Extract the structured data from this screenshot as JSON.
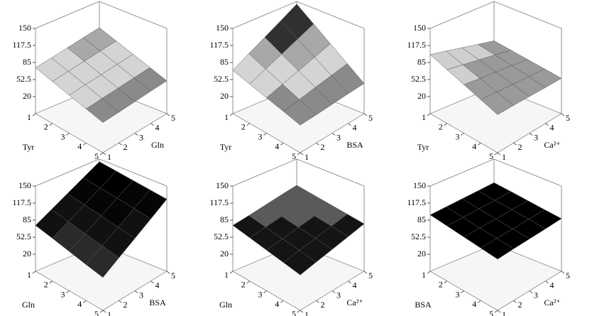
{
  "chart_data": [
    {
      "type": "surface3d",
      "xlabel": "Tyr",
      "ylabel": "Gln",
      "x": [
        1,
        2,
        3,
        4,
        5
      ],
      "y": [
        1,
        2,
        3,
        4,
        5
      ],
      "z": [
        [
          75,
          67.5,
          60,
          52.5,
          45
        ],
        [
          81,
          72.5,
          64,
          55,
          46
        ],
        [
          87.5,
          77.5,
          67.5,
          57.5,
          47.5
        ],
        [
          94,
          82.5,
          71.5,
          60,
          49
        ],
        [
          100,
          87.5,
          75,
          62.5,
          50
        ]
      ],
      "xlim": [
        1,
        5
      ],
      "ylim": [
        1,
        5
      ],
      "zlim": [
        -12.5,
        150
      ],
      "xticks": [
        1,
        2,
        3,
        4,
        5
      ],
      "yticks": [
        1,
        2,
        3,
        4,
        5
      ],
      "zticks": [
        20,
        52.5,
        85,
        117.5,
        150
      ],
      "surface_colors": [
        "#000000",
        "#1a1a1a",
        "#8a8a8a",
        "#d4d4d4",
        "#a8a8a8",
        "#303030",
        "#000000"
      ]
    },
    {
      "type": "surface3d",
      "xlabel": "Tyr",
      "ylabel": "BSA",
      "x": [
        1,
        2,
        3,
        4,
        5
      ],
      "y": [
        1,
        2,
        3,
        4,
        5
      ],
      "z": [
        [
          70,
          62.5,
          55,
          47.5,
          40
        ],
        [
          89,
          77,
          65,
          53,
          41
        ],
        [
          107.5,
          91,
          75,
          59,
          42.5
        ],
        [
          126,
          105.5,
          85,
          64.5,
          44
        ],
        [
          145,
          120,
          95,
          70,
          45
        ]
      ],
      "xlim": [
        1,
        5
      ],
      "ylim": [
        1,
        5
      ],
      "zlim": [
        -12.5,
        150
      ],
      "xticks": [
        1,
        2,
        3,
        4,
        5
      ],
      "yticks": [
        1,
        2,
        3,
        4,
        5
      ],
      "zticks": [
        20,
        52.5,
        85,
        117.5,
        150
      ],
      "surface_colors": [
        "#000000",
        "#1a1a1a",
        "#8a8a8a",
        "#d4d4d4",
        "#a8a8a8",
        "#303030",
        "#000000"
      ]
    },
    {
      "type": "surface3d",
      "xlabel": "Tyr",
      "ylabel": "Ca²⁺",
      "x": [
        1,
        2,
        3,
        4,
        5
      ],
      "y": [
        1,
        2,
        3,
        4,
        5
      ],
      "z": [
        [
          100,
          90,
          80,
          70,
          60
        ],
        [
          94,
          85,
          76,
          67.5,
          59
        ],
        [
          87.5,
          80,
          72.5,
          65,
          57.5
        ],
        [
          81,
          75,
          69,
          62.5,
          56
        ],
        [
          75,
          70,
          65,
          60,
          55
        ]
      ],
      "xlim": [
        1,
        5
      ],
      "ylim": [
        1,
        5
      ],
      "zlim": [
        -12.5,
        150
      ],
      "xticks": [
        1,
        2,
        3,
        4,
        5
      ],
      "yticks": [
        1,
        2,
        3,
        4,
        5
      ],
      "zticks": [
        20,
        52.5,
        85,
        117.5,
        150
      ],
      "surface_colors": [
        "#000000",
        "#1a1a1a",
        "#555555",
        "#9a9a9a",
        "#cfcfcf",
        "#b0b0b0",
        "#707070"
      ]
    },
    {
      "type": "surface3d",
      "xlabel": "Gln",
      "ylabel": "BSA",
      "x": [
        1,
        2,
        3,
        4,
        5
      ],
      "y": [
        1,
        2,
        3,
        4,
        5
      ],
      "z": [
        [
          75,
          69,
          62.5,
          56,
          50
        ],
        [
          92.5,
          86.5,
          80.5,
          75,
          69
        ],
        [
          110,
          104.5,
          99,
          93,
          87.5
        ],
        [
          127.5,
          122,
          117,
          111.5,
          106
        ],
        [
          145,
          140,
          135,
          130,
          125
        ]
      ],
      "xlim": [
        1,
        5
      ],
      "ylim": [
        1,
        5
      ],
      "zlim": [
        -12.5,
        150
      ],
      "xticks": [
        1,
        2,
        3,
        4,
        5
      ],
      "yticks": [
        1,
        2,
        3,
        4,
        5
      ],
      "zticks": [
        20,
        52.5,
        85,
        117.5,
        150
      ],
      "surface_colors": [
        "#000000",
        "#202020",
        "#606060",
        "#2a2a2a",
        "#111111",
        "#050505",
        "#000000"
      ]
    },
    {
      "type": "surface3d",
      "xlabel": "Gln",
      "ylabel": "Ca²⁺",
      "x": [
        1,
        2,
        3,
        4,
        5
      ],
      "y": [
        1,
        2,
        3,
        4,
        5
      ],
      "z": [
        [
          75,
          70,
          65,
          60,
          55
        ],
        [
          81,
          76,
          71,
          66,
          61
        ],
        [
          87.5,
          82,
          77,
          72,
          66.5
        ],
        [
          94,
          88.5,
          83,
          78,
          72
        ],
        [
          100,
          94.5,
          89,
          83.5,
          78
        ]
      ],
      "xlim": [
        1,
        5
      ],
      "ylim": [
        1,
        5
      ],
      "zlim": [
        -12.5,
        150
      ],
      "xticks": [
        1,
        2,
        3,
        4,
        5
      ],
      "yticks": [
        1,
        2,
        3,
        4,
        5
      ],
      "zticks": [
        20,
        52.5,
        85,
        117.5,
        150
      ],
      "surface_colors": [
        "#000000",
        "#050505",
        "#303030",
        "#141414",
        "#5a5a5a",
        "#202020",
        "#000000"
      ]
    },
    {
      "type": "surface3d",
      "xlabel": "BSA",
      "ylabel": "Ca²⁺",
      "x": [
        1,
        2,
        3,
        4,
        5
      ],
      "y": [
        1,
        2,
        3,
        4,
        5
      ],
      "z": [
        [
          95,
          92.5,
          90,
          87.5,
          85
        ],
        [
          97.5,
          94.5,
          91.5,
          89,
          86
        ],
        [
          100,
          96.5,
          93,
          90,
          86.5
        ],
        [
          102.5,
          98.5,
          95,
          91,
          87
        ],
        [
          105,
          101,
          96.5,
          92,
          88
        ]
      ],
      "xlim": [
        1,
        5
      ],
      "ylim": [
        1,
        5
      ],
      "zlim": [
        -12.5,
        150
      ],
      "xticks": [
        1,
        2,
        3,
        4,
        5
      ],
      "yticks": [
        1,
        2,
        3,
        4,
        5
      ],
      "zticks": [
        20,
        52.5,
        85,
        117.5,
        150
      ],
      "surface_colors": [
        "#000000",
        "#000000",
        "#000000",
        "#0a0a0a",
        "#000000",
        "#6a6a6a",
        "#cfcfcf"
      ]
    }
  ]
}
